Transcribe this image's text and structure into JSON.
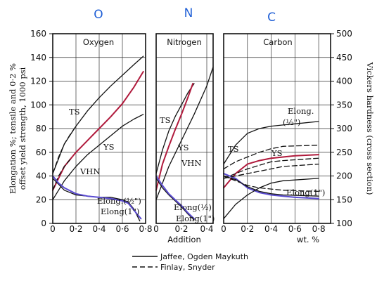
{
  "header_letters": [
    "O",
    "N",
    "C"
  ],
  "chart_data": {
    "type": "line",
    "left_axis": {
      "label_line1": "Elongation %; tensile and 0·2 %",
      "label_line2": "offset yield strength, 1000 psi",
      "ticks": [
        0,
        20,
        40,
        60,
        80,
        100,
        120,
        140,
        160
      ],
      "ylim": [
        0,
        160
      ]
    },
    "right_axis": {
      "label": "Vickers hardness (cross section)",
      "ticks": [
        100,
        150,
        200,
        250,
        300,
        350,
        400,
        450,
        500
      ],
      "ylim": [
        100,
        500
      ]
    },
    "xlabel": "Addition",
    "xunit": "wt. %",
    "grid": true,
    "legend": {
      "placement": "bottom-center",
      "entries": [
        {
          "style": "solid",
          "label": "Jaffee, Ogden Maykuth"
        },
        {
          "style": "dashed",
          "label": "Finlay, Snyder"
        }
      ]
    },
    "panels": [
      {
        "title": "Oxygen",
        "x_ticks": [
          "0",
          "0·2",
          "0·4",
          "0·6",
          "0·8"
        ],
        "xlim": [
          0,
          0.8
        ],
        "labels": [
          "TS",
          "YS",
          "VHN",
          "Elong.(½\")",
          "Elong(1\")"
        ],
        "series": [
          {
            "label": "TS",
            "style": "solid",
            "x": [
              0,
              0.1,
              0.2,
              0.3,
              0.4,
              0.5,
              0.6,
              0.7,
              0.78
            ],
            "y": [
              42,
              67,
              82,
              95,
              106,
              116,
              125,
              134,
              141
            ]
          },
          {
            "label": "TS",
            "style": "dashed",
            "x": [
              0,
              0.05,
              0.1,
              0.15,
              0.2
            ],
            "y": [
              42,
              56,
              67,
              75,
              82
            ]
          },
          {
            "label": "YS",
            "style": "highlight",
            "x": [
              0,
              0.1,
              0.2,
              0.3,
              0.4,
              0.5,
              0.6,
              0.7,
              0.78
            ],
            "y": [
              28,
              48,
              60,
              70,
              80,
              90,
              101,
              115,
              128
            ]
          },
          {
            "label": "YS",
            "style": "dashed",
            "x": [
              0,
              0.05,
              0.1,
              0.15
            ],
            "y": [
              28,
              40,
              48,
              54
            ]
          },
          {
            "label": "VHN",
            "style": "solid",
            "x": [
              0,
              0.1,
              0.2,
              0.3,
              0.4,
              0.5,
              0.6,
              0.7,
              0.78
            ],
            "y": [
              150,
              190,
              220,
              245,
              265,
              285,
              305,
              320,
              330
            ]
          },
          {
            "label": "Elong.(½\")",
            "style": "solid",
            "x": [
              0,
              0.05,
              0.1,
              0.2,
              0.3,
              0.4,
              0.5,
              0.6,
              0.65,
              0.7,
              0.75
            ],
            "y": [
              38,
              33,
              28,
              24,
              23,
              22,
              22,
              20,
              18,
              12,
              2
            ]
          },
          {
            "label": "Elong(1\")",
            "style": "highlight",
            "x": [
              0,
              0.05,
              0.1,
              0.2,
              0.3,
              0.4,
              0.5,
              0.6,
              0.65,
              0.7,
              0.76
            ],
            "y": [
              40,
              34,
              30,
              25,
              23,
              22,
              21,
              19,
              17,
              11,
              4
            ]
          }
        ]
      },
      {
        "title": "Nitrogen",
        "x_ticks": [
          "0",
          "0·2",
          "0·4"
        ],
        "xlim": [
          0,
          0.45
        ],
        "labels": [
          "TS",
          "YS",
          "VHN",
          "Elong(½)",
          "Elong(1\")"
        ],
        "series": [
          {
            "label": "TS",
            "style": "solid",
            "x": [
              0,
              0.05,
              0.1,
              0.15,
              0.2,
              0.25,
              0.3
            ],
            "y": [
              42,
              62,
              78,
              90,
              100,
              110,
              118
            ]
          },
          {
            "label": "YS",
            "style": "highlight",
            "x": [
              0,
              0.05,
              0.1,
              0.15,
              0.2,
              0.25,
              0.29
            ],
            "y": [
              28,
              50,
              65,
              79,
              92,
              106,
              118
            ]
          },
          {
            "label": "VHN",
            "style": "solid",
            "x": [
              0,
              0.1,
              0.2,
              0.3,
              0.4,
              0.45
            ],
            "y": [
              150,
              220,
              275,
              330,
              390,
              430
            ]
          },
          {
            "label": "Elong(½)",
            "style": "solid",
            "x": [
              0,
              0.05,
              0.1,
              0.15,
              0.2,
              0.25,
              0.3
            ],
            "y": [
              38,
              30,
              24,
              19,
              14,
              8,
              3
            ]
          },
          {
            "label": "Elong(1\")",
            "style": "highlight",
            "x": [
              0,
              0.05,
              0.1,
              0.15,
              0.2,
              0.25,
              0.3
            ],
            "y": [
              40,
              32,
              25,
              20,
              15,
              9,
              4
            ]
          }
        ]
      },
      {
        "title": "Carbon",
        "x_ticks": [
          "0",
          "0·2",
          "0·4",
          "0·6",
          "0·8"
        ],
        "xlim": [
          0,
          0.9
        ],
        "labels": [
          "TS",
          "YS",
          "Elong.",
          "(½\")",
          "Elong(1\")"
        ],
        "series": [
          {
            "label": "TS",
            "style": "solid",
            "x": [
              0,
              0.1,
              0.2,
              0.3,
              0.4,
              0.5,
              0.6,
              0.8
            ],
            "y": [
              50,
              66,
              76,
              80,
              82,
              83,
              84,
              86
            ]
          },
          {
            "label": "TS",
            "style": "dashed",
            "x": [
              0,
              0.1,
              0.2,
              0.3,
              0.4,
              0.5,
              0.8
            ],
            "y": [
              46,
              52,
              56,
              60,
              63,
              65,
              66
            ]
          },
          {
            "label": "YS",
            "style": "highlight",
            "x": [
              0,
              0.1,
              0.2,
              0.3,
              0.4,
              0.5,
              0.6,
              0.8
            ],
            "y": [
              30,
              42,
              50,
              53,
              55,
              56,
              57,
              58
            ]
          },
          {
            "label": "YS",
            "style": "dashed",
            "x": [
              0,
              0.1,
              0.2,
              0.3,
              0.4,
              0.5,
              0.8
            ],
            "y": [
              38,
              42,
              46,
              49,
              52,
              53,
              55
            ]
          },
          {
            "label": "Elong.(½\")",
            "style": "dashed",
            "x": [
              0,
              0.1,
              0.2,
              0.3,
              0.4,
              0.5,
              0.8
            ],
            "y": [
              40,
              36,
              32,
              30,
              29,
              28,
              27
            ]
          },
          {
            "label": "Elong(1\")",
            "style": "highlight",
            "x": [
              0,
              0.1,
              0.2,
              0.3,
              0.4,
              0.5,
              0.6,
              0.8
            ],
            "y": [
              42,
              38,
              30,
              26,
              24,
              23,
              22,
              21
            ]
          },
          {
            "label": "Elong(1\")",
            "style": "solid",
            "x": [
              0,
              0.1,
              0.2,
              0.3,
              0.4,
              0.5,
              0.8
            ],
            "y": [
              40,
              37,
              31,
              27,
              25,
              24,
              23
            ]
          },
          {
            "label": "VHN",
            "style": "solid",
            "x": [
              0,
              0.1,
              0.2,
              0.3,
              0.4,
              0.5,
              0.8
            ],
            "y": [
              110,
              140,
              160,
              175,
              185,
              190,
              195
            ]
          },
          {
            "label": "VHN",
            "style": "dashed",
            "x": [
              0,
              0.1,
              0.2,
              0.3,
              0.4,
              0.5,
              0.8
            ],
            "y": [
              195,
              200,
              205,
              210,
              215,
              220,
              225
            ]
          }
        ]
      }
    ]
  }
}
